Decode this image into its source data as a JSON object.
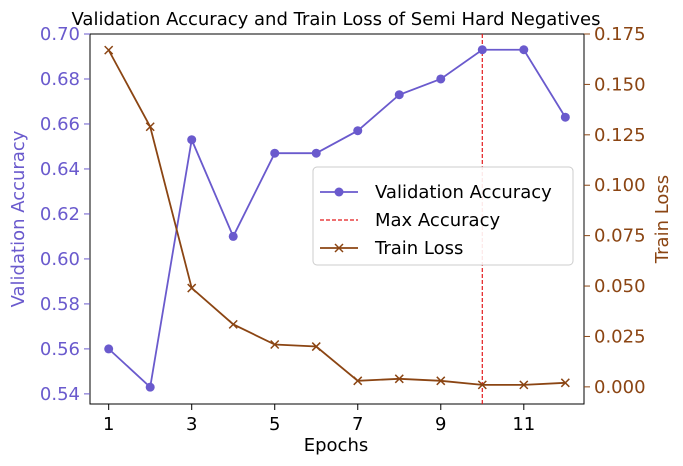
{
  "chart_data": {
    "type": "line",
    "title": "Validation Accuracy and Train Loss of Semi Hard Negatives",
    "xlabel": "Epochs",
    "ylabel_left": "Validation Accuracy",
    "ylabel_right": "Train Loss",
    "x": [
      1,
      2,
      3,
      4,
      5,
      6,
      7,
      8,
      9,
      10,
      11,
      12
    ],
    "xlim": [
      0.55,
      12.45
    ],
    "x_ticks": [
      1,
      3,
      5,
      7,
      9,
      11
    ],
    "ylim_left": [
      0.5355,
      0.7
    ],
    "y_ticks_left": [
      0.54,
      0.56,
      0.58,
      0.6,
      0.62,
      0.64,
      0.66,
      0.68,
      0.7
    ],
    "ylim_right": [
      -0.0085,
      0.175
    ],
    "y_ticks_right": [
      0.0,
      0.025,
      0.05,
      0.075,
      0.1,
      0.125,
      0.15,
      0.175
    ],
    "series": [
      {
        "name": "Validation Accuracy",
        "axis": "left",
        "marker": "circle",
        "color": "#6a5acd",
        "values": [
          0.56,
          0.543,
          0.653,
          0.61,
          0.647,
          0.647,
          0.657,
          0.673,
          0.68,
          0.693,
          0.693,
          0.663
        ]
      },
      {
        "name": "Train Loss",
        "axis": "right",
        "marker": "x",
        "color": "#8b4513",
        "values": [
          0.167,
          0.129,
          0.049,
          0.031,
          0.021,
          0.02,
          0.003,
          0.004,
          0.003,
          0.001,
          0.001,
          0.002
        ]
      }
    ],
    "annotations": [
      {
        "type": "vline",
        "x": 10,
        "name": "Max Accuracy",
        "color": "#e41a1c",
        "style": "dashed"
      }
    ],
    "legend": {
      "placement": "center-right",
      "entries": [
        "Validation Accuracy",
        "Max Accuracy",
        "Train Loss"
      ]
    },
    "grid": false
  }
}
